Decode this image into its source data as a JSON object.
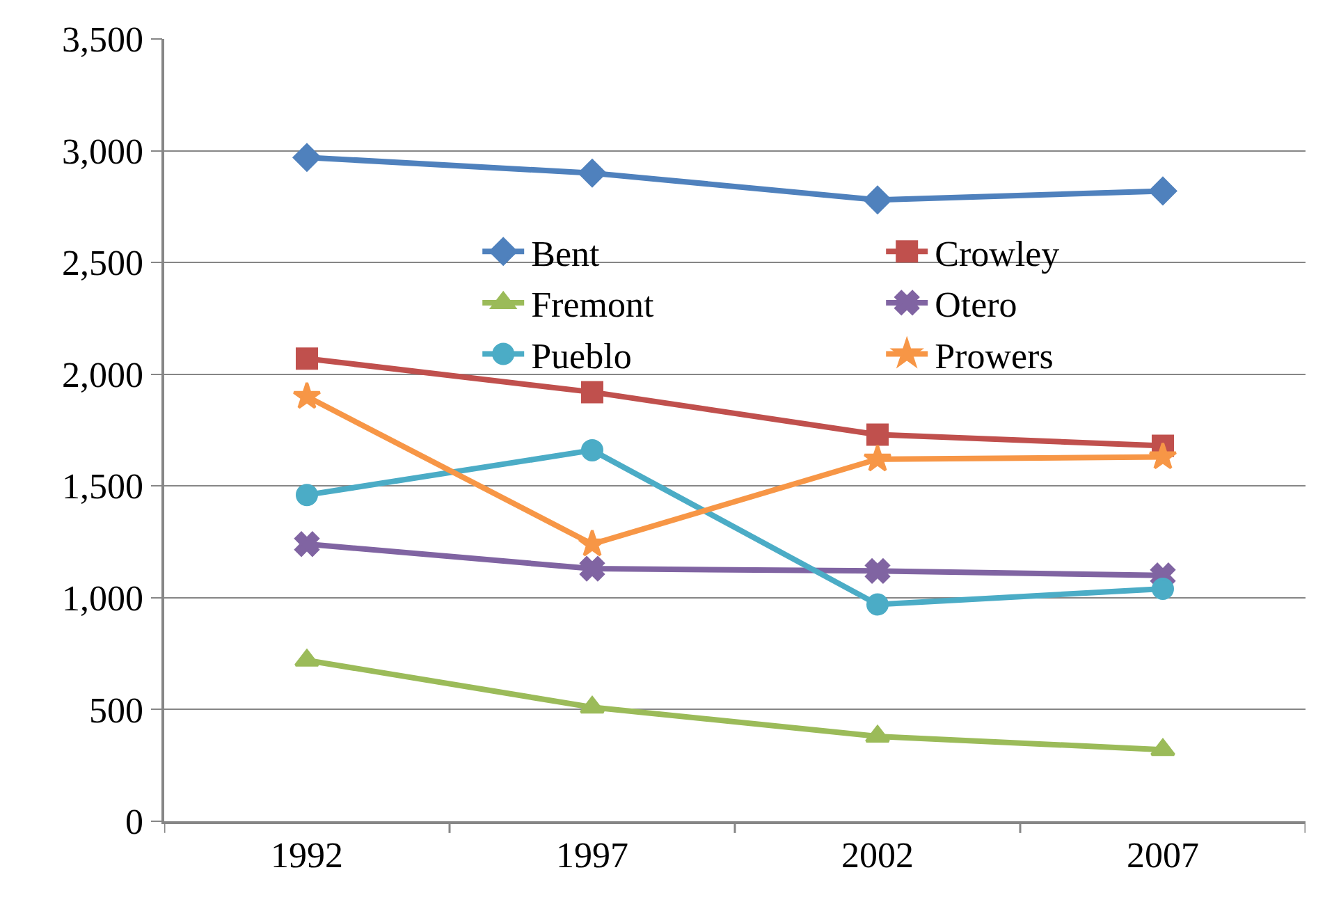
{
  "chart_data": {
    "type": "line",
    "categories": [
      "1992",
      "1997",
      "2002",
      "2007"
    ],
    "series": [
      {
        "name": "Bent",
        "color": "#4f81bd",
        "marker": "diamond",
        "values": [
          2970,
          2900,
          2780,
          2820
        ]
      },
      {
        "name": "Crowley",
        "color": "#c0504d",
        "marker": "square",
        "values": [
          2070,
          1920,
          1730,
          1680
        ]
      },
      {
        "name": "Fremont",
        "color": "#9bbb59",
        "marker": "triangle",
        "values": [
          720,
          510,
          380,
          320
        ]
      },
      {
        "name": "Otero",
        "color": "#8064a2",
        "marker": "cross",
        "values": [
          1240,
          1130,
          1120,
          1100
        ]
      },
      {
        "name": "Pueblo",
        "color": "#4bacc6",
        "marker": "circle",
        "values": [
          1460,
          1660,
          970,
          1040
        ]
      },
      {
        "name": "Prowers",
        "color": "#f79646",
        "marker": "star",
        "values": [
          1900,
          1240,
          1620,
          1630
        ]
      }
    ],
    "ylim": [
      0,
      3500
    ],
    "yticks": [
      {
        "value": 0,
        "label": "0"
      },
      {
        "value": 500,
        "label": "500"
      },
      {
        "value": 1000,
        "label": "1,000"
      },
      {
        "value": 1500,
        "label": "1,500"
      },
      {
        "value": 2000,
        "label": "2,000"
      },
      {
        "value": 2500,
        "label": "2,500"
      },
      {
        "value": 3000,
        "label": "3,000"
      },
      {
        "value": 3500,
        "label": "3,500"
      }
    ],
    "grid": "y",
    "legend": "top right",
    "line_style": "solid"
  }
}
